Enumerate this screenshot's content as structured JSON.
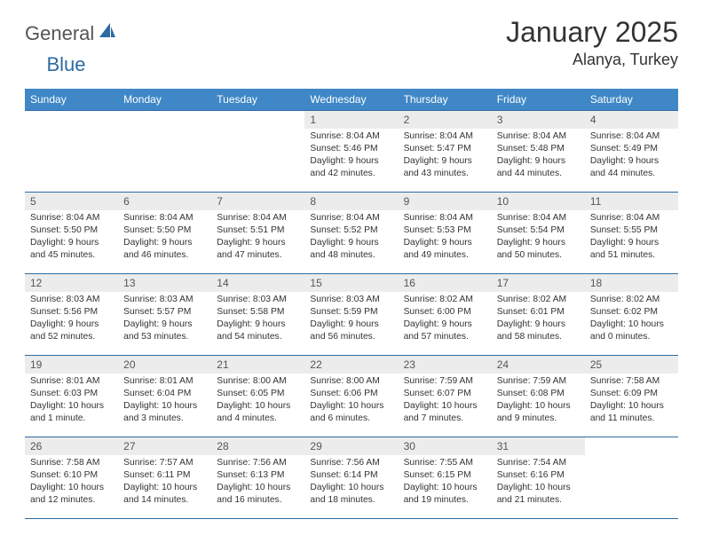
{
  "logo": {
    "general": "General",
    "blue": "Blue"
  },
  "title": "January 2025",
  "location": "Alanya, Turkey",
  "colors": {
    "header_bg": "#3f87c6",
    "header_text": "#ffffff",
    "rule": "#2d6aa3",
    "daynum_bg": "#ececec",
    "text": "#333333"
  },
  "weekdays": [
    "Sunday",
    "Monday",
    "Tuesday",
    "Wednesday",
    "Thursday",
    "Friday",
    "Saturday"
  ],
  "weeks": [
    [
      {
        "n": "",
        "sr": "",
        "ss": "",
        "dl": ""
      },
      {
        "n": "",
        "sr": "",
        "ss": "",
        "dl": ""
      },
      {
        "n": "",
        "sr": "",
        "ss": "",
        "dl": ""
      },
      {
        "n": "1",
        "sr": "Sunrise: 8:04 AM",
        "ss": "Sunset: 5:46 PM",
        "dl": "Daylight: 9 hours and 42 minutes."
      },
      {
        "n": "2",
        "sr": "Sunrise: 8:04 AM",
        "ss": "Sunset: 5:47 PM",
        "dl": "Daylight: 9 hours and 43 minutes."
      },
      {
        "n": "3",
        "sr": "Sunrise: 8:04 AM",
        "ss": "Sunset: 5:48 PM",
        "dl": "Daylight: 9 hours and 44 minutes."
      },
      {
        "n": "4",
        "sr": "Sunrise: 8:04 AM",
        "ss": "Sunset: 5:49 PM",
        "dl": "Daylight: 9 hours and 44 minutes."
      }
    ],
    [
      {
        "n": "5",
        "sr": "Sunrise: 8:04 AM",
        "ss": "Sunset: 5:50 PM",
        "dl": "Daylight: 9 hours and 45 minutes."
      },
      {
        "n": "6",
        "sr": "Sunrise: 8:04 AM",
        "ss": "Sunset: 5:50 PM",
        "dl": "Daylight: 9 hours and 46 minutes."
      },
      {
        "n": "7",
        "sr": "Sunrise: 8:04 AM",
        "ss": "Sunset: 5:51 PM",
        "dl": "Daylight: 9 hours and 47 minutes."
      },
      {
        "n": "8",
        "sr": "Sunrise: 8:04 AM",
        "ss": "Sunset: 5:52 PM",
        "dl": "Daylight: 9 hours and 48 minutes."
      },
      {
        "n": "9",
        "sr": "Sunrise: 8:04 AM",
        "ss": "Sunset: 5:53 PM",
        "dl": "Daylight: 9 hours and 49 minutes."
      },
      {
        "n": "10",
        "sr": "Sunrise: 8:04 AM",
        "ss": "Sunset: 5:54 PM",
        "dl": "Daylight: 9 hours and 50 minutes."
      },
      {
        "n": "11",
        "sr": "Sunrise: 8:04 AM",
        "ss": "Sunset: 5:55 PM",
        "dl": "Daylight: 9 hours and 51 minutes."
      }
    ],
    [
      {
        "n": "12",
        "sr": "Sunrise: 8:03 AM",
        "ss": "Sunset: 5:56 PM",
        "dl": "Daylight: 9 hours and 52 minutes."
      },
      {
        "n": "13",
        "sr": "Sunrise: 8:03 AM",
        "ss": "Sunset: 5:57 PM",
        "dl": "Daylight: 9 hours and 53 minutes."
      },
      {
        "n": "14",
        "sr": "Sunrise: 8:03 AM",
        "ss": "Sunset: 5:58 PM",
        "dl": "Daylight: 9 hours and 54 minutes."
      },
      {
        "n": "15",
        "sr": "Sunrise: 8:03 AM",
        "ss": "Sunset: 5:59 PM",
        "dl": "Daylight: 9 hours and 56 minutes."
      },
      {
        "n": "16",
        "sr": "Sunrise: 8:02 AM",
        "ss": "Sunset: 6:00 PM",
        "dl": "Daylight: 9 hours and 57 minutes."
      },
      {
        "n": "17",
        "sr": "Sunrise: 8:02 AM",
        "ss": "Sunset: 6:01 PM",
        "dl": "Daylight: 9 hours and 58 minutes."
      },
      {
        "n": "18",
        "sr": "Sunrise: 8:02 AM",
        "ss": "Sunset: 6:02 PM",
        "dl": "Daylight: 10 hours and 0 minutes."
      }
    ],
    [
      {
        "n": "19",
        "sr": "Sunrise: 8:01 AM",
        "ss": "Sunset: 6:03 PM",
        "dl": "Daylight: 10 hours and 1 minute."
      },
      {
        "n": "20",
        "sr": "Sunrise: 8:01 AM",
        "ss": "Sunset: 6:04 PM",
        "dl": "Daylight: 10 hours and 3 minutes."
      },
      {
        "n": "21",
        "sr": "Sunrise: 8:00 AM",
        "ss": "Sunset: 6:05 PM",
        "dl": "Daylight: 10 hours and 4 minutes."
      },
      {
        "n": "22",
        "sr": "Sunrise: 8:00 AM",
        "ss": "Sunset: 6:06 PM",
        "dl": "Daylight: 10 hours and 6 minutes."
      },
      {
        "n": "23",
        "sr": "Sunrise: 7:59 AM",
        "ss": "Sunset: 6:07 PM",
        "dl": "Daylight: 10 hours and 7 minutes."
      },
      {
        "n": "24",
        "sr": "Sunrise: 7:59 AM",
        "ss": "Sunset: 6:08 PM",
        "dl": "Daylight: 10 hours and 9 minutes."
      },
      {
        "n": "25",
        "sr": "Sunrise: 7:58 AM",
        "ss": "Sunset: 6:09 PM",
        "dl": "Daylight: 10 hours and 11 minutes."
      }
    ],
    [
      {
        "n": "26",
        "sr": "Sunrise: 7:58 AM",
        "ss": "Sunset: 6:10 PM",
        "dl": "Daylight: 10 hours and 12 minutes."
      },
      {
        "n": "27",
        "sr": "Sunrise: 7:57 AM",
        "ss": "Sunset: 6:11 PM",
        "dl": "Daylight: 10 hours and 14 minutes."
      },
      {
        "n": "28",
        "sr": "Sunrise: 7:56 AM",
        "ss": "Sunset: 6:13 PM",
        "dl": "Daylight: 10 hours and 16 minutes."
      },
      {
        "n": "29",
        "sr": "Sunrise: 7:56 AM",
        "ss": "Sunset: 6:14 PM",
        "dl": "Daylight: 10 hours and 18 minutes."
      },
      {
        "n": "30",
        "sr": "Sunrise: 7:55 AM",
        "ss": "Sunset: 6:15 PM",
        "dl": "Daylight: 10 hours and 19 minutes."
      },
      {
        "n": "31",
        "sr": "Sunrise: 7:54 AM",
        "ss": "Sunset: 6:16 PM",
        "dl": "Daylight: 10 hours and 21 minutes."
      },
      {
        "n": "",
        "sr": "",
        "ss": "",
        "dl": ""
      }
    ]
  ]
}
